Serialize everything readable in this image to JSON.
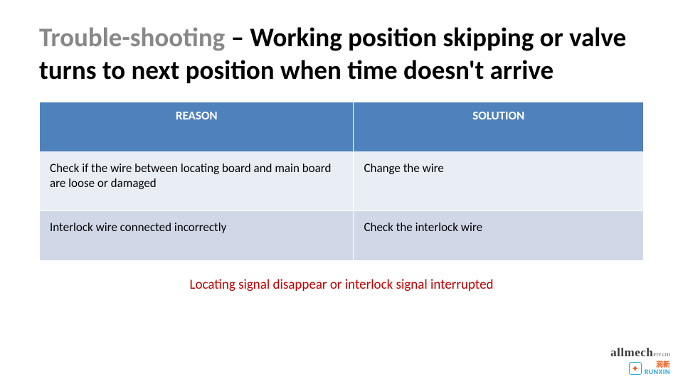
{
  "title": {
    "part_grey": "Trouble-shooting",
    "part_black": " – Working position skipping or valve turns to next position when time doesn't arrive"
  },
  "table": {
    "columns": [
      "REASON",
      "SOLUTION"
    ],
    "rows": [
      [
        "Check if the wire between locating board and main board are loose or damaged",
        "Change the wire"
      ],
      [
        "Interlock wire connected incorrectly",
        "Check the interlock wire"
      ]
    ],
    "header_bg": "#4f81bd",
    "header_text_color": "#ffffff",
    "row_colors": [
      "#e9edf4",
      "#d0d8e8"
    ],
    "border_color": "#ffffff",
    "font_size": 17
  },
  "caption": {
    "text": "Locating signal disappear or interlock signal interrupted",
    "color": "#c00000",
    "font_size": 19
  },
  "logos": {
    "allmech": "allmech",
    "allmech_sub": "PTY LTD",
    "runxin_cn": "润新",
    "runxin_en": "RUNXIN"
  },
  "colors": {
    "title_grey": "#888888",
    "title_black": "#000000",
    "background": "#ffffff"
  }
}
